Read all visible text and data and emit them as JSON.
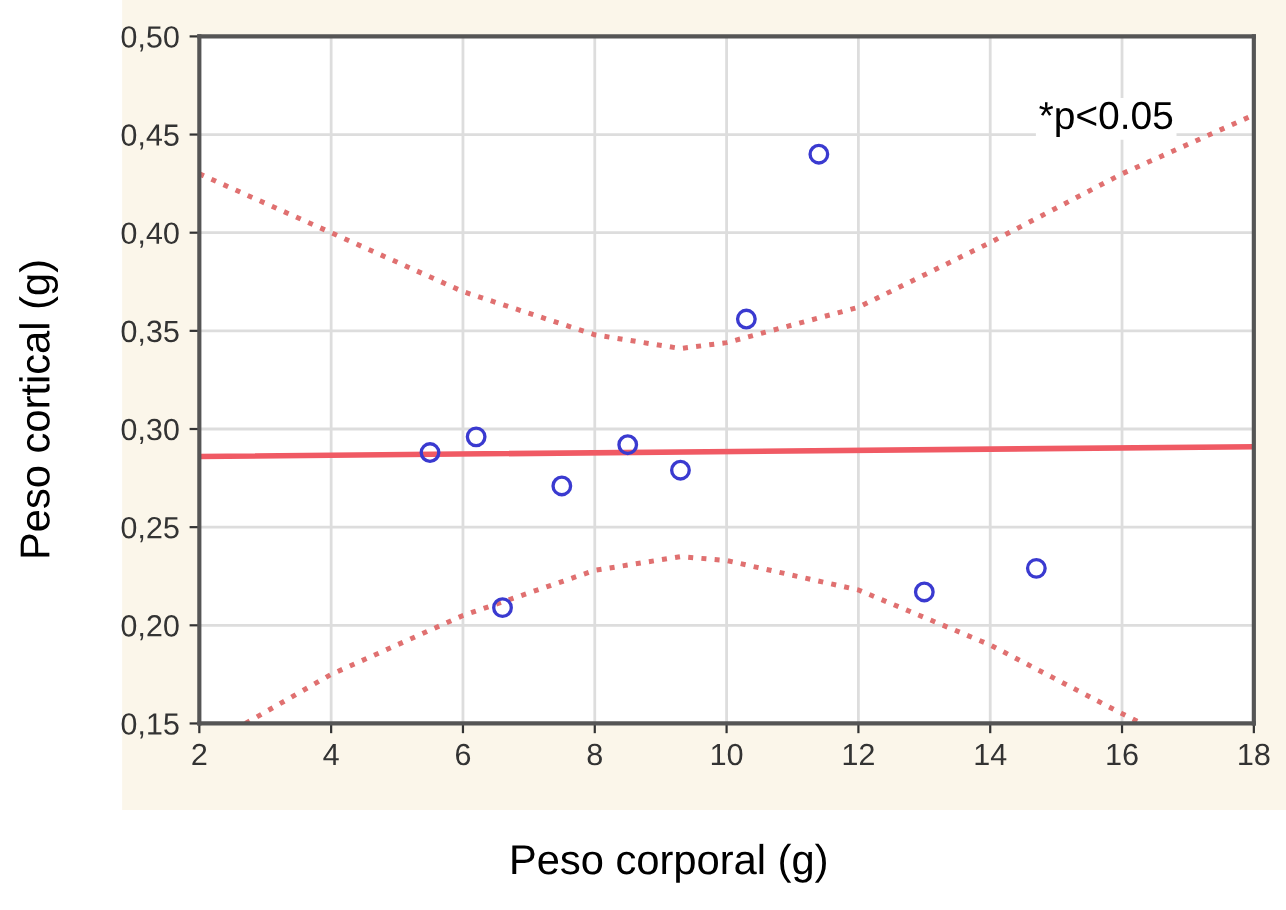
{
  "chart_data": {
    "type": "scatter",
    "xlabel": "Peso corporal (g)",
    "ylabel": "Peso cortical (g)",
    "xlim": [
      2,
      18
    ],
    "xticks": [
      2,
      4,
      6,
      8,
      10,
      12,
      14,
      16,
      18
    ],
    "ylim": [
      0.15,
      0.5
    ],
    "yticks": [
      {
        "value": 0.15,
        "label": "0,15"
      },
      {
        "value": 0.2,
        "label": "0,20"
      },
      {
        "value": 0.25,
        "label": "0,25"
      },
      {
        "value": 0.3,
        "label": "0,30"
      },
      {
        "value": 0.35,
        "label": "0,35"
      },
      {
        "value": 0.4,
        "label": "0,40"
      },
      {
        "value": 0.45,
        "label": "0,45"
      },
      {
        "value": 0.5,
        "label": "0,50"
      }
    ],
    "grid": true,
    "legend": false,
    "annotations": [
      "*p<0.05"
    ],
    "series": [
      {
        "marker": "circle",
        "color": "#3a3ad0",
        "x": [
          5.5,
          6.2,
          6.6,
          7.5,
          8.5,
          9.3,
          10.3,
          11.4,
          13.0,
          14.7
        ],
        "values": [
          0.288,
          0.296,
          0.209,
          0.271,
          0.292,
          0.279,
          0.356,
          0.44,
          0.217,
          0.229
        ]
      },
      {
        "type": "line",
        "line_style": "solid",
        "color": "#f05a64",
        "x": [
          2,
          18
        ],
        "values": [
          0.286,
          0.291
        ]
      },
      {
        "type": "line",
        "line_style": "dotted",
        "color": "#e07070",
        "x": [
          2,
          4,
          6,
          8,
          9.3,
          10,
          12,
          14,
          16,
          18
        ],
        "values": [
          0.43,
          0.4,
          0.37,
          0.348,
          0.341,
          0.344,
          0.362,
          0.395,
          0.43,
          0.46
        ]
      },
      {
        "type": "line",
        "line_style": "dotted",
        "color": "#e07070",
        "x": [
          2.7,
          4,
          6,
          8,
          9.3,
          10,
          12,
          14,
          16,
          16.3
        ],
        "values": [
          0.15,
          0.175,
          0.205,
          0.228,
          0.235,
          0.233,
          0.218,
          0.19,
          0.155,
          0.15
        ]
      }
    ]
  }
}
